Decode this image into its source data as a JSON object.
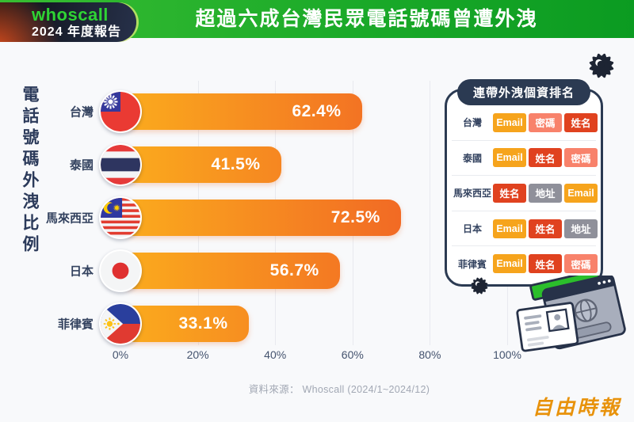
{
  "header": {
    "title": "超過六成台灣民眾電話號碼曾遭外洩"
  },
  "logo": {
    "brand": "whoscall",
    "subtitle": "2024 年度報告"
  },
  "chart_data": [
    {
      "type": "bar",
      "orientation": "horizontal",
      "title": "電話號碼外洩比例",
      "categories": [
        "台灣",
        "泰國",
        "馬來西亞",
        "日本",
        "菲律賓"
      ],
      "values": [
        62.4,
        41.5,
        72.5,
        56.7,
        33.1
      ],
      "value_labels": [
        "62.4%",
        "41.5%",
        "72.5%",
        "56.7%",
        "33.1%"
      ],
      "flags": [
        "taiwan-flag",
        "thailand-flag",
        "malaysia-flag",
        "japan-flag",
        "philippines-flag"
      ],
      "x_ticks": [
        "0%",
        "20%",
        "40%",
        "60%",
        "80%",
        "100%"
      ],
      "xlim": [
        0,
        100
      ],
      "grid": true,
      "bar_gradient": [
        "#FBAC1D",
        "#EE5127"
      ]
    },
    {
      "type": "table",
      "title": "連帶外洩個資排名",
      "rows": [
        {
          "label": "台灣",
          "cells": [
            "Email",
            "密碼",
            "姓名"
          ]
        },
        {
          "label": "泰國",
          "cells": [
            "Email",
            "姓名",
            "密碼"
          ]
        },
        {
          "label": "馬來西亞",
          "cells": [
            "姓名",
            "地址",
            "Email"
          ]
        },
        {
          "label": "日本",
          "cells": [
            "Email",
            "姓名",
            "地址"
          ]
        },
        {
          "label": "菲律賓",
          "cells": [
            "Email",
            "姓名",
            "密碼"
          ]
        }
      ],
      "cell_colors": {
        "Email": "#F6A41C",
        "姓名": "#E0421F",
        "密碼": "#F8826B",
        "地址": "#8F909A"
      }
    }
  ],
  "footer": {
    "source": "資料來源： Whoscall (2024/1~2024/12)",
    "publisher": "自由時報"
  },
  "colors": {
    "header_green_left": "#38BD32",
    "header_green_right": "#0B9B21",
    "badge_dark": "#0D0F15",
    "brand_green": "#2FD334",
    "text_navy": "#2B3A5A",
    "virus_dark": "#1D2433",
    "publisher_orange": "#E8920B"
  }
}
